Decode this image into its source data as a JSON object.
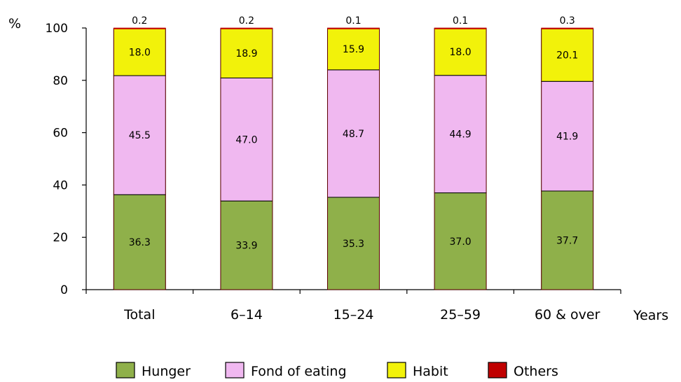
{
  "chart_data": {
    "type": "bar",
    "stacked": true,
    "categories": [
      "Total",
      "6–14",
      "15–24",
      "25–59",
      "60 & over"
    ],
    "x_unit_label": "Years",
    "y_unit_label": "%",
    "ylim": [
      0,
      100
    ],
    "y_ticks": [
      0,
      20,
      40,
      60,
      80,
      100
    ],
    "grid": false,
    "legend_position": "bottom",
    "series": [
      {
        "name": "Hunger",
        "color": "#8FB04A",
        "values": [
          36.3,
          33.9,
          35.3,
          37.0,
          37.7
        ],
        "labels": [
          "36.3",
          "33.9",
          "35.3",
          "37.0",
          "37.7"
        ]
      },
      {
        "name": "Fond of eating",
        "color": "#F0B8F0",
        "values": [
          45.5,
          47.0,
          48.7,
          44.9,
          41.9
        ],
        "labels": [
          "45.5",
          "47.0",
          "48.7",
          "44.9",
          "41.9"
        ]
      },
      {
        "name": "Habit",
        "color": "#F2F20A",
        "values": [
          18.0,
          18.9,
          15.9,
          18.0,
          20.1
        ],
        "labels": [
          "18.0",
          "18.9",
          "15.9",
          "18.0",
          "20.1"
        ]
      },
      {
        "name": "Others",
        "color": "#C00000",
        "values": [
          0.2,
          0.2,
          0.1,
          0.1,
          0.3
        ],
        "labels": [
          "0.2",
          "0.2",
          "0.1",
          "0.1",
          "0.3"
        ]
      }
    ]
  }
}
